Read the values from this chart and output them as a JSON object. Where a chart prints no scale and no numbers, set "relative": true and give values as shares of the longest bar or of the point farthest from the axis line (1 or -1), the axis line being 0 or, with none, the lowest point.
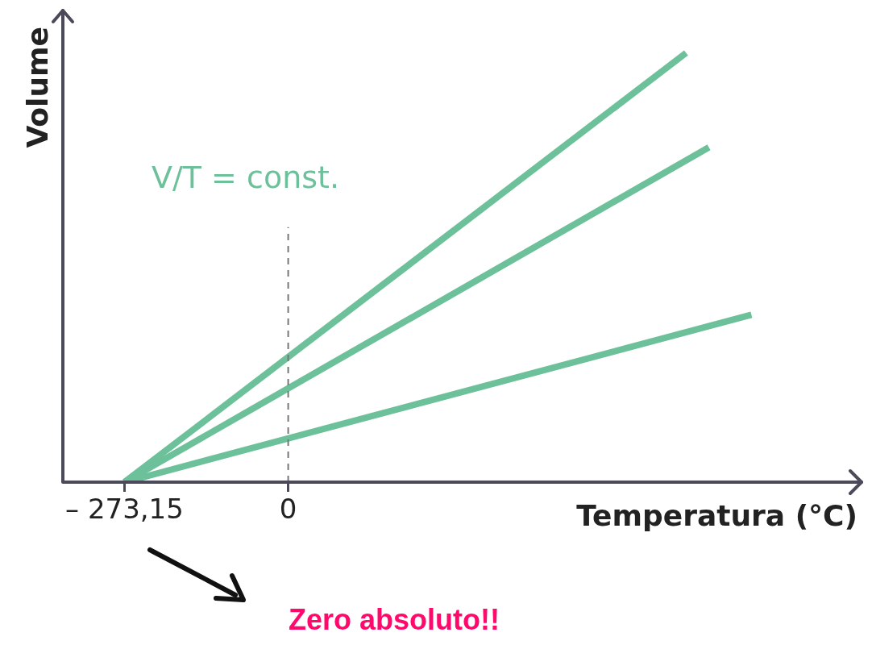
{
  "chart_data": {
    "type": "line",
    "relative": true,
    "xlabel": "Temperatura (°C)",
    "ylabel": "Volume",
    "xlim": [
      -376,
      950
    ],
    "xticks": [
      {
        "value": -273.15,
        "label": "– 273,15"
      },
      0
    ],
    "series": [
      {
        "color": "#6cc09a",
        "x": [
          -273.15,
          664
        ],
        "values": [
          0,
          1
        ]
      },
      {
        "color": "#6cc09a",
        "x": [
          -273.15,
          702
        ],
        "values": [
          0,
          0.78
        ]
      },
      {
        "color": "#6cc09a",
        "x": [
          -273.15,
          773
        ],
        "values": [
          0,
          0.39
        ]
      }
    ],
    "ref_lines": [
      {
        "axis": "x",
        "value": 0,
        "label": null,
        "color": "#777777",
        "line_style": "dashed"
      }
    ],
    "annotations": [
      "V/T = const.",
      "Zero absoluto!!"
    ],
    "grid": false,
    "legend": false
  }
}
